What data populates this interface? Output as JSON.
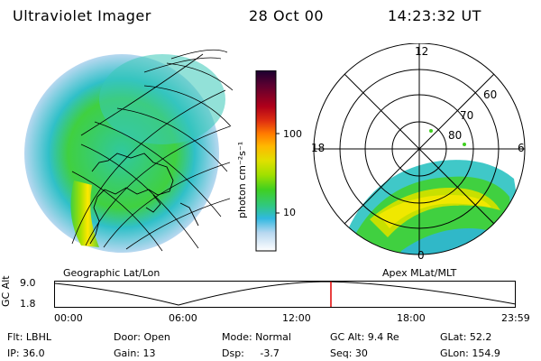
{
  "header": {
    "title": "Ultraviolet Imager",
    "date": "28 Oct 00",
    "time": "14:23:32 UT"
  },
  "colorbar": {
    "unit_label": "photon cm⁻²s⁻¹",
    "tick_labels": [
      "100",
      "10"
    ],
    "colors_top_to_bottom": [
      "#1a0030",
      "#5a0030",
      "#b0001a",
      "#e03010",
      "#ff7a00",
      "#ffb800",
      "#e0e000",
      "#a0e000",
      "#40d020",
      "#30c880",
      "#30b8e0",
      "#b8d8f0",
      "#ffffff"
    ]
  },
  "left_panel": {
    "caption": "Geographic Lat/Lon"
  },
  "right_panel": {
    "caption": "Apex MLat/MLT",
    "mlt_labels": [
      "12",
      "18",
      "6",
      "0"
    ],
    "mlat_labels": [
      "60",
      "70",
      "80"
    ]
  },
  "timeline": {
    "ylabel": "GC Alt",
    "y_ticks": [
      "9.0",
      "1.8"
    ],
    "x_ticks": [
      "00:00",
      "06:00",
      "12:00",
      "18:00",
      "23:59"
    ],
    "marker_color": "#e00000"
  },
  "footer": {
    "flt": "Flt: LBHL",
    "ip": "IP: 36.0",
    "door": "Door: Open",
    "gain": "Gain: 13",
    "mode": "Mode: Normal",
    "dsp": "Dsp:     -3.7",
    "gc_alt": "GC Alt: 9.4 Re",
    "seq": "Seq: 30",
    "glat": "GLat: 52.2",
    "glon": "GLon: 154.9"
  }
}
